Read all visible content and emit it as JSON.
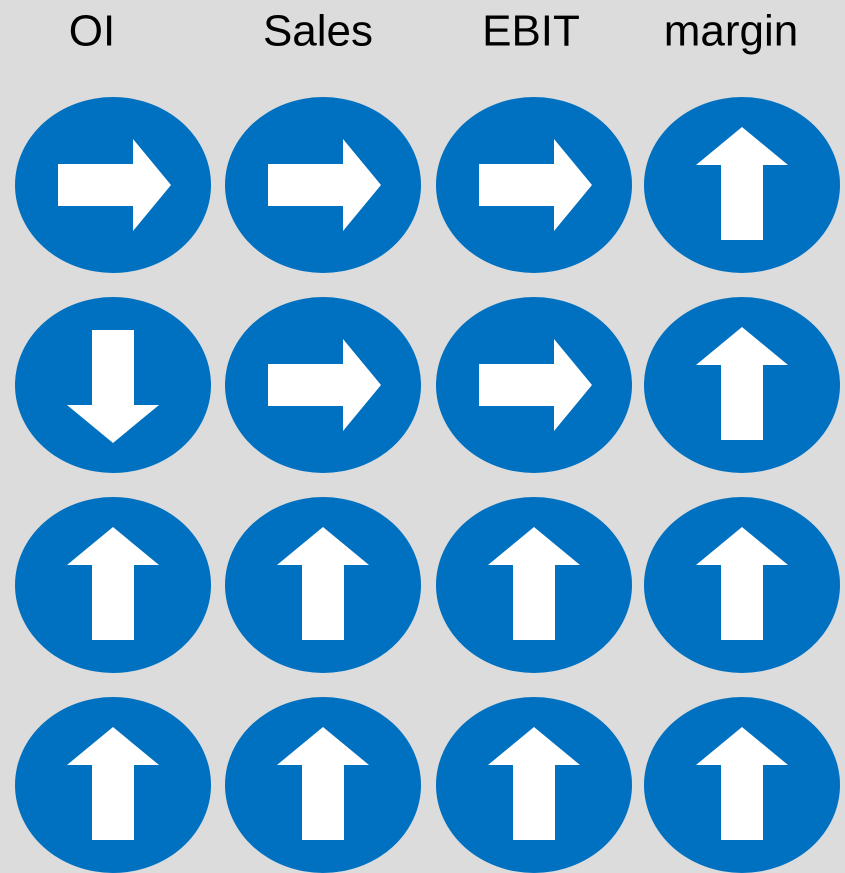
{
  "header": {
    "columns": [
      "OI",
      "Sales",
      "EBIT",
      "margin"
    ]
  },
  "grid": {
    "color": "#0070c0",
    "rows": [
      [
        "right",
        "right",
        "right",
        "up"
      ],
      [
        "down",
        "right",
        "right",
        "up"
      ],
      [
        "up",
        "up",
        "up",
        "up"
      ],
      [
        "up",
        "up",
        "up",
        "up"
      ]
    ]
  }
}
